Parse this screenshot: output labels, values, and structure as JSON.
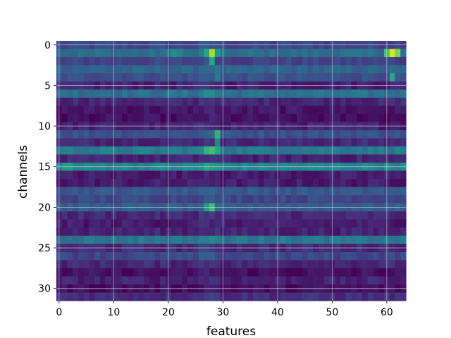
{
  "chart_data": {
    "type": "heatmap",
    "title": "",
    "xlabel": "features",
    "ylabel": "channels",
    "colormap": "viridis",
    "n_cols": 64,
    "n_rows": 32,
    "xlim": [
      -0.5,
      63.5
    ],
    "ylim": [
      31.5,
      -0.5
    ],
    "xticks": [
      0,
      10,
      20,
      30,
      40,
      50,
      60
    ],
    "yticks": [
      0,
      5,
      10,
      15,
      20,
      25,
      30
    ],
    "grid": true,
    "row_base": [
      0.22,
      0.36,
      0.2,
      0.32,
      0.25,
      0.1,
      0.38,
      0.12,
      0.06,
      0.04,
      0.1,
      0.26,
      0.12,
      0.42,
      0.1,
      0.46,
      0.08,
      0.08,
      0.28,
      0.22,
      0.3,
      0.12,
      0.08,
      0.1,
      0.4,
      0.12,
      0.22,
      0.12,
      0.04,
      0.1,
      0.04,
      0.14
    ],
    "hotspots": [
      {
        "row": 1,
        "col": 61,
        "value": 0.95
      },
      {
        "row": 1,
        "col": 60,
        "value": 0.7
      },
      {
        "row": 1,
        "col": 62,
        "value": 0.8
      },
      {
        "row": 1,
        "col": 28,
        "value": 0.88
      },
      {
        "row": 1,
        "col": 27,
        "value": 0.6
      },
      {
        "row": 1,
        "col": 29,
        "value": 0.55
      },
      {
        "row": 1,
        "col": 21,
        "value": 0.5
      },
      {
        "row": 1,
        "col": 22,
        "value": 0.45
      },
      {
        "row": 2,
        "col": 28,
        "value": 0.6
      },
      {
        "row": 4,
        "col": 61,
        "value": 0.6
      },
      {
        "row": 4,
        "col": 29,
        "value": 0.42
      },
      {
        "row": 6,
        "col": 27,
        "value": 0.5
      },
      {
        "row": 6,
        "col": 28,
        "value": 0.5
      },
      {
        "row": 11,
        "col": 29,
        "value": 0.65
      },
      {
        "row": 12,
        "col": 29,
        "value": 0.45
      },
      {
        "row": 13,
        "col": 27,
        "value": 0.65
      },
      {
        "row": 13,
        "col": 28,
        "value": 0.7
      },
      {
        "row": 13,
        "col": 29,
        "value": 0.6
      },
      {
        "row": 15,
        "col": 27,
        "value": 0.6
      },
      {
        "row": 15,
        "col": 28,
        "value": 0.55
      },
      {
        "row": 15,
        "col": 1,
        "value": 0.55
      },
      {
        "row": 15,
        "col": 2,
        "value": 0.55
      },
      {
        "row": 20,
        "col": 28,
        "value": 0.7
      },
      {
        "row": 20,
        "col": 27,
        "value": 0.55
      },
      {
        "row": 24,
        "col": 37,
        "value": 0.45
      }
    ]
  }
}
